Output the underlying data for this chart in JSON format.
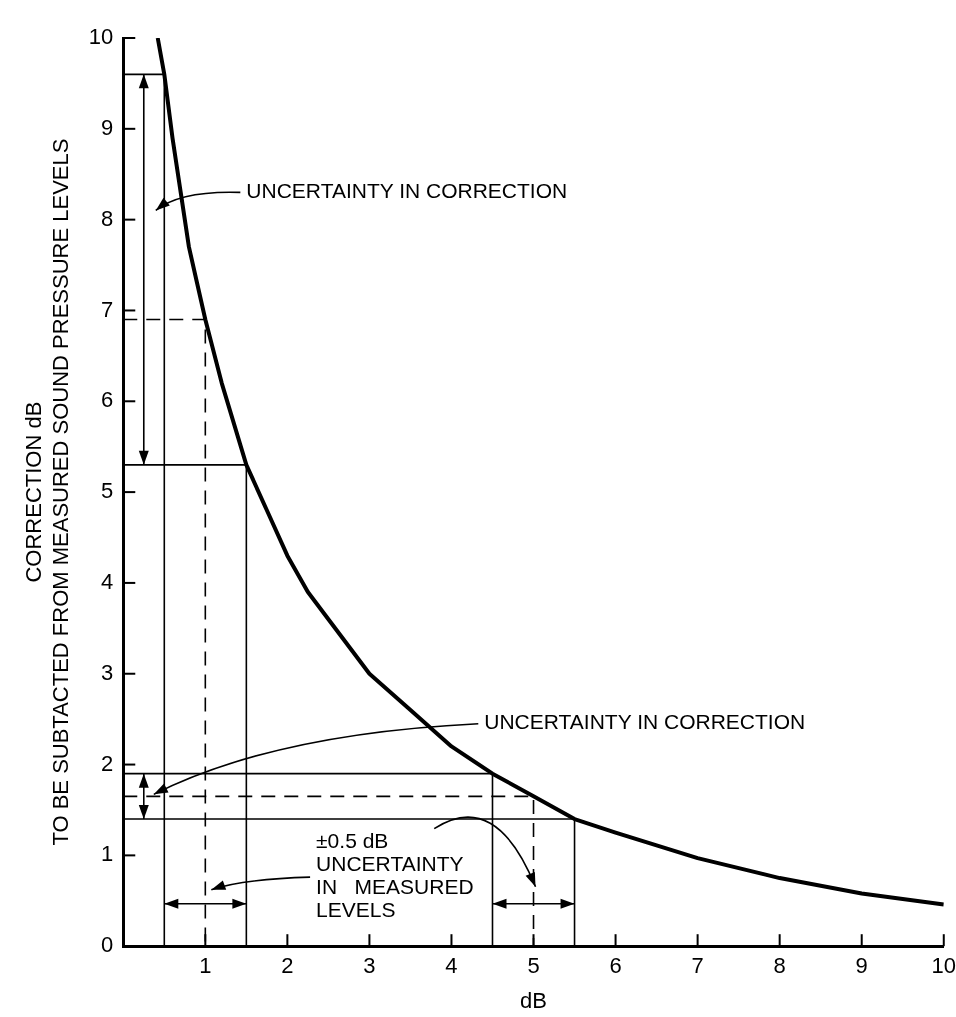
{
  "chart_data": {
    "type": "line",
    "xlabel": "dB",
    "ylabel": "CORRECTION dB\nTO BE SUBTACTED FROM MEASURED SOUND PRESSURE LEVELS",
    "xlim": [
      0,
      10
    ],
    "xticks": [
      1,
      2,
      3,
      4,
      5,
      6,
      7,
      8,
      9,
      10
    ],
    "ylim": [
      0,
      10
    ],
    "yticks": [
      0,
      1,
      2,
      3,
      4,
      5,
      6,
      7,
      8,
      9,
      10
    ],
    "grid": false,
    "legend": false,
    "marker": "none",
    "series": [
      {
        "color": "#000000",
        "line_style": "solid",
        "x": [
          0.42,
          0.5,
          0.6,
          0.7,
          0.8,
          0.9,
          1,
          1.2,
          1.5,
          1.75,
          2,
          2.25,
          2.5,
          3,
          3.5,
          4,
          4.5,
          5,
          5.5,
          6,
          7,
          8,
          9,
          10
        ],
        "values": [
          10,
          9.6,
          8.9,
          8.3,
          7.7,
          7.3,
          6.9,
          6.2,
          5.3,
          4.8,
          4.3,
          3.9,
          3.6,
          3.0,
          2.6,
          2.2,
          1.9,
          1.65,
          1.4,
          1.25,
          0.97,
          0.75,
          0.58,
          0.46
        ]
      },
      {
        "color": "#000000",
        "line_style": "solid",
        "x": [
          0,
          0.5,
          0.5
        ],
        "values": [
          9.6,
          9.6,
          0
        ]
      },
      {
        "color": "#000000",
        "line_style": "dashed",
        "x": [
          0,
          1,
          1
        ],
        "values": [
          6.9,
          6.9,
          0
        ]
      },
      {
        "color": "#000000",
        "line_style": "solid",
        "x": [
          0,
          1.5,
          1.5
        ],
        "values": [
          5.3,
          5.3,
          0
        ]
      },
      {
        "color": "#000000",
        "line_style": "solid",
        "x": [
          0,
          4.5,
          4.5
        ],
        "values": [
          1.9,
          1.9,
          0
        ]
      },
      {
        "color": "#000000",
        "line_style": "dashed",
        "x": [
          0,
          5,
          5
        ],
        "values": [
          1.65,
          1.65,
          0
        ]
      },
      {
        "color": "#000000",
        "line_style": "solid",
        "x": [
          0,
          5.5,
          5.5
        ],
        "values": [
          1.4,
          1.4,
          0
        ]
      }
    ],
    "annotations": [
      "UNCERTAINTY IN CORRECTION",
      "UNCERTAINTY IN CORRECTION",
      {
        "text": "±0.5 dB\nUNCERTAINTY\nIN   MEASURED\nLEVELS",
        "x": 5,
        "y": 0.5
      }
    ]
  }
}
